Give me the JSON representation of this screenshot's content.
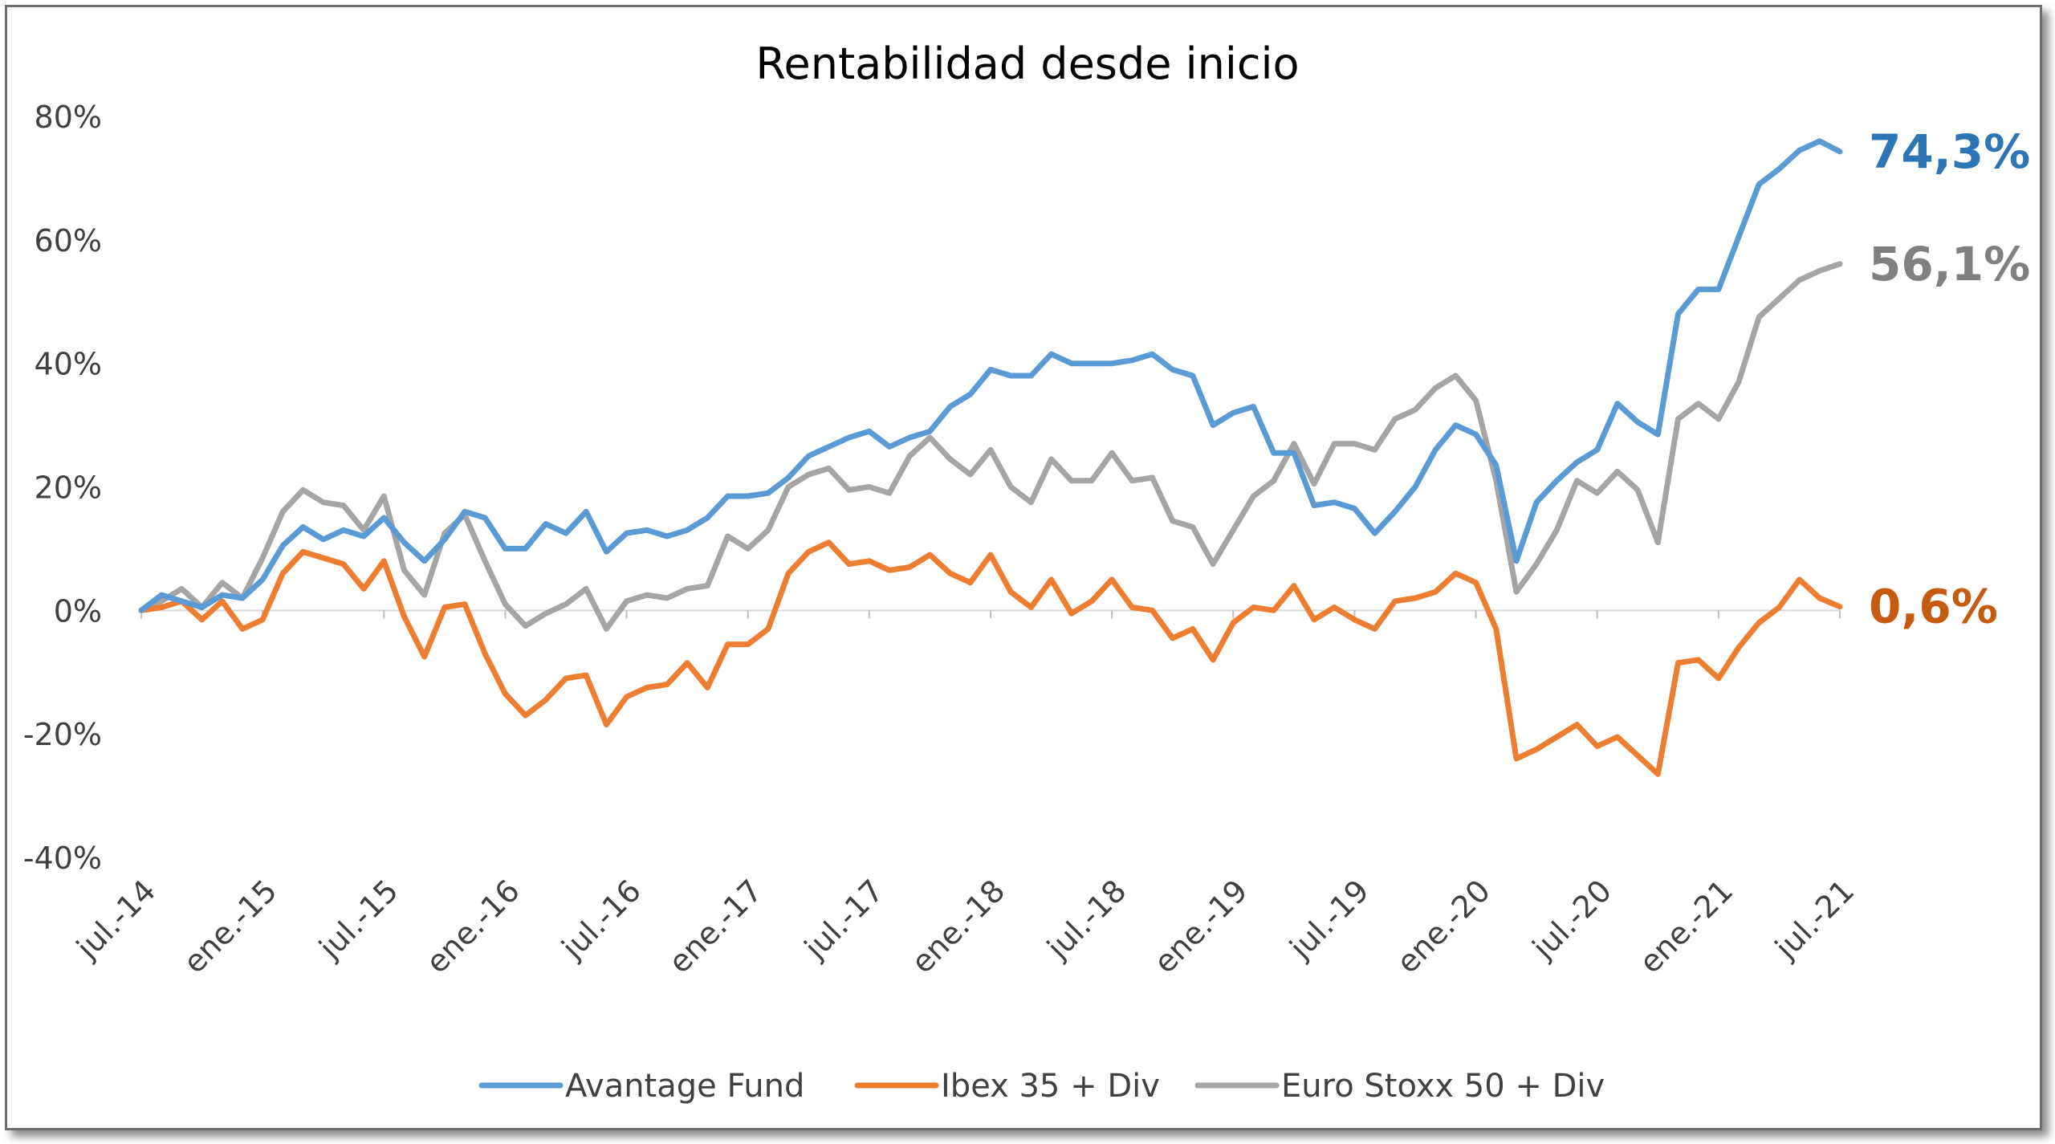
{
  "chart_data": {
    "type": "line",
    "title": "Rentabilidad desde inicio",
    "xlabel": "",
    "ylabel": "",
    "ylim": [
      -40,
      80
    ],
    "y_ticks": [
      "80%",
      "60%",
      "40%",
      "20%",
      "0%",
      "-20%",
      "-40%"
    ],
    "y_tick_values": [
      80,
      60,
      40,
      20,
      0,
      -20,
      -40
    ],
    "x_tick_labels": [
      "jul.-14",
      "ene.-15",
      "jul.-15",
      "ene.-16",
      "jul.-16",
      "ene.-17",
      "jul.-17",
      "ene.-18",
      "jul.-18",
      "ene.-19",
      "jul.-19",
      "ene.-20",
      "jul.-20",
      "ene.-21",
      "jul.-21"
    ],
    "x_start": "jul.-14",
    "x_end": "jul.-21",
    "legend_position": "bottom",
    "series": [
      {
        "name": "Avantage Fund",
        "color": "#5b9bd5",
        "end_label": "74,3%",
        "label_color": "#2e75b6",
        "values": [
          0,
          2.5,
          1.5,
          0.5,
          2.5,
          2,
          5,
          10.5,
          13.5,
          11.5,
          13,
          12,
          15,
          11,
          8,
          11.5,
          16,
          15,
          10,
          10,
          14,
          12.5,
          16,
          9.5,
          12.5,
          13,
          12,
          13,
          15,
          18.5,
          18.5,
          19,
          21.5,
          25,
          26.5,
          28,
          29,
          26.5,
          28,
          29,
          33,
          35,
          39,
          38,
          38,
          41.5,
          40,
          40,
          40,
          40.5,
          41.5,
          39,
          38,
          30,
          32,
          33,
          25.5,
          25.5,
          17,
          17.5,
          16.5,
          12.5,
          16,
          20,
          26,
          30,
          28.5,
          23.5,
          8,
          17.5,
          21,
          24,
          26,
          33.5,
          30.5,
          28.5,
          48,
          52,
          52,
          60.5,
          69,
          71.5,
          74.5,
          76,
          74.3
        ]
      },
      {
        "name": "Ibex 35 + Div",
        "color": "#ed7d31",
        "end_label": "0,6%",
        "label_color": "#c55a11",
        "values": [
          0,
          0.5,
          1.5,
          -1.5,
          1.5,
          -3,
          -1.5,
          6,
          9.5,
          8.5,
          7.5,
          3.5,
          8,
          -1,
          -7.5,
          0.5,
          1,
          -7,
          -13.5,
          -17,
          -14.5,
          -11,
          -10.5,
          -18.5,
          -14,
          -12.5,
          -12,
          -8.5,
          -12.5,
          -5.5,
          -5.5,
          -3,
          6,
          9.5,
          11,
          7.5,
          8,
          6.5,
          7,
          9,
          6,
          4.5,
          9,
          3,
          0.5,
          5,
          -0.5,
          1.5,
          5,
          0.5,
          0,
          -4.5,
          -3,
          -8,
          -2,
          0.5,
          0,
          4,
          -1.5,
          0.5,
          -1.5,
          -3,
          1.5,
          2,
          3,
          6,
          4.5,
          -3,
          -24,
          -22.5,
          -20.5,
          -18.5,
          -22,
          -20.5,
          -23.5,
          -26.5,
          -8.5,
          -8,
          -11,
          -6,
          -2,
          0.5,
          5,
          2,
          0.6
        ]
      },
      {
        "name": "Euro Stoxx 50 + Div",
        "color": "#a5a5a5",
        "end_label": "56,1%",
        "label_color": "#808080",
        "values": [
          0,
          1.5,
          3.5,
          0.5,
          4.5,
          2,
          8.5,
          16,
          19.5,
          17.5,
          17,
          13,
          18.5,
          6.5,
          2.5,
          12.5,
          15.5,
          8,
          1,
          -2.5,
          -0.5,
          1,
          3.5,
          -3,
          1.5,
          2.5,
          2,
          3.5,
          4,
          12,
          10,
          13,
          20,
          22,
          23,
          19.5,
          20,
          19,
          25,
          28,
          24.5,
          22,
          26,
          20,
          17.5,
          24.5,
          21,
          21,
          25.5,
          21,
          21.5,
          14.5,
          13.5,
          7.5,
          13,
          18.5,
          21,
          27,
          20.5,
          27,
          27,
          26,
          31,
          32.5,
          36,
          38,
          34,
          21,
          3,
          7.5,
          13,
          21,
          19,
          22.5,
          19.5,
          11,
          31,
          33.5,
          31,
          37,
          47.5,
          50.5,
          53.5,
          55,
          56.1
        ]
      }
    ]
  }
}
